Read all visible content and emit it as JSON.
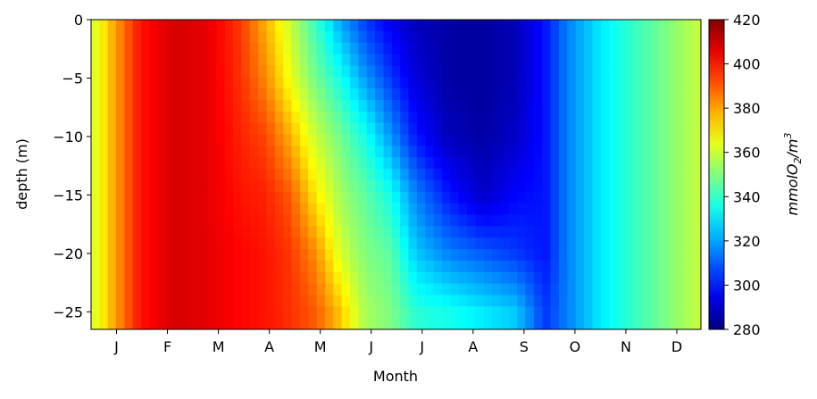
{
  "chart_data": {
    "type": "heatmap",
    "xlabel": "Month",
    "ylabel": "depth (m)",
    "x_tick_labels": [
      "J",
      "F",
      "M",
      "A",
      "M",
      "J",
      "J",
      "A",
      "S",
      "O",
      "N",
      "D"
    ],
    "x_range_days": [
      1,
      365
    ],
    "ylim": [
      -26.5,
      0
    ],
    "y_ticks": [
      0,
      -5,
      -10,
      -15,
      -20,
      -25
    ],
    "y_tick_labels": [
      "0",
      "−5",
      "−10",
      "−15",
      "−20",
      "−25"
    ],
    "colorbar": {
      "label": "mmolO₂/m³",
      "label_base": "mmolO",
      "label_sub": "2",
      "label_mid": "/m",
      "label_sup": "3",
      "range": [
        280,
        420
      ],
      "ticks": [
        420,
        400,
        380,
        360,
        340,
        320,
        300,
        280
      ],
      "colormap": "jet"
    },
    "depth_levels": [
      0,
      -5,
      -10,
      -15,
      -20,
      -25
    ],
    "profiles": [
      {
        "day": 1,
        "values": [
          360,
          360,
          360,
          360,
          360,
          360
        ]
      },
      {
        "day": 15,
        "values": [
          380,
          380,
          380,
          380,
          380,
          380
        ]
      },
      {
        "day": 30,
        "values": [
          400,
          400,
          400,
          400,
          400,
          400
        ]
      },
      {
        "day": 50,
        "values": [
          408,
          408,
          408,
          408,
          408,
          408
        ]
      },
      {
        "day": 70,
        "values": [
          406,
          406,
          406,
          406,
          406,
          406
        ]
      },
      {
        "day": 90,
        "values": [
          395,
          396,
          398,
          400,
          402,
          402
        ]
      },
      {
        "day": 105,
        "values": [
          378,
          384,
          393,
          398,
          400,
          400
        ]
      },
      {
        "day": 120,
        "values": [
          360,
          365,
          378,
          390,
          395,
          396
        ]
      },
      {
        "day": 135,
        "values": [
          340,
          348,
          360,
          370,
          383,
          390
        ]
      },
      {
        "day": 150,
        "values": [
          320,
          335,
          348,
          355,
          362,
          375
        ]
      },
      {
        "day": 165,
        "values": [
          305,
          318,
          335,
          345,
          350,
          355
        ]
      },
      {
        "day": 180,
        "values": [
          295,
          305,
          318,
          335,
          345,
          350
        ]
      },
      {
        "day": 195,
        "values": [
          288,
          292,
          300,
          315,
          325,
          338
        ]
      },
      {
        "day": 215,
        "values": [
          285,
          285,
          288,
          300,
          315,
          335
        ]
      },
      {
        "day": 235,
        "values": [
          284,
          284,
          285,
          290,
          310,
          330
        ]
      },
      {
        "day": 255,
        "values": [
          288,
          288,
          290,
          298,
          305,
          325
        ]
      },
      {
        "day": 272,
        "values": [
          300,
          300,
          300,
          300,
          300,
          305
        ]
      },
      {
        "day": 285,
        "values": [
          315,
          315,
          315,
          315,
          315,
          315
        ]
      },
      {
        "day": 305,
        "values": [
          330,
          330,
          330,
          330,
          330,
          330
        ]
      },
      {
        "day": 325,
        "values": [
          340,
          340,
          340,
          340,
          340,
          340
        ]
      },
      {
        "day": 345,
        "values": [
          350,
          350,
          350,
          350,
          350,
          350
        ]
      },
      {
        "day": 365,
        "values": [
          360,
          360,
          360,
          360,
          360,
          360
        ]
      }
    ]
  }
}
